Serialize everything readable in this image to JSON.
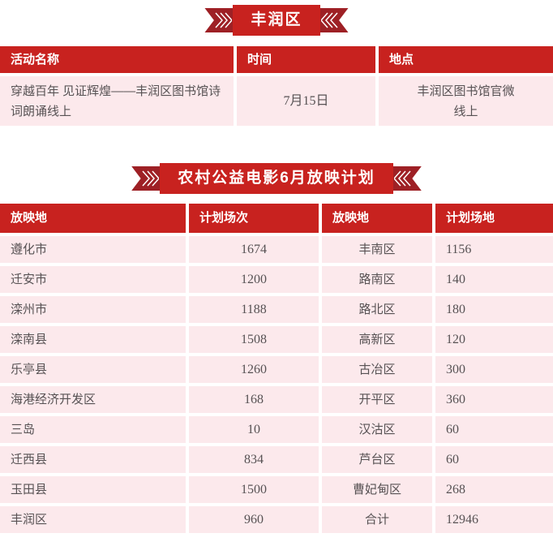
{
  "colors": {
    "accent_red": "#c8221f",
    "wing_dark_red": "#9e2025",
    "cell_pink": "#fce9ec",
    "body_text": "#575254",
    "header_text": "#ffffff"
  },
  "banners": {
    "district_title": "丰润区",
    "screening_title": "农村公益电影6月放映计划"
  },
  "activity_table": {
    "headers": [
      "活动名称",
      "时间",
      "地点"
    ],
    "rows": [
      {
        "name": "穿越百年 见证辉煌——丰润区图书馆诗词朗诵线上",
        "time": "7月15日",
        "location_lines": [
          "丰润区图书馆官微",
          "线上"
        ]
      }
    ]
  },
  "screening_table": {
    "headers": [
      "放映地",
      "计划场次",
      "放映地",
      "计划场地"
    ],
    "rows": [
      [
        "遵化市",
        "1674",
        "丰南区",
        "1156"
      ],
      [
        "迁安市",
        "1200",
        "路南区",
        "140"
      ],
      [
        "滦州市",
        "1188",
        "路北区",
        "180"
      ],
      [
        "滦南县",
        "1508",
        "高新区",
        "120"
      ],
      [
        "乐亭县",
        "1260",
        "古冶区",
        "300"
      ],
      [
        "海港经济开发区",
        "168",
        "开平区",
        "360"
      ],
      [
        "三岛",
        "10",
        "汉沽区",
        "60"
      ],
      [
        "迁西县",
        "834",
        "芦台区",
        "60"
      ],
      [
        "玉田县",
        "1500",
        "曹妃甸区",
        "268"
      ],
      [
        "丰润区",
        "960",
        "合计",
        "12946"
      ]
    ]
  }
}
